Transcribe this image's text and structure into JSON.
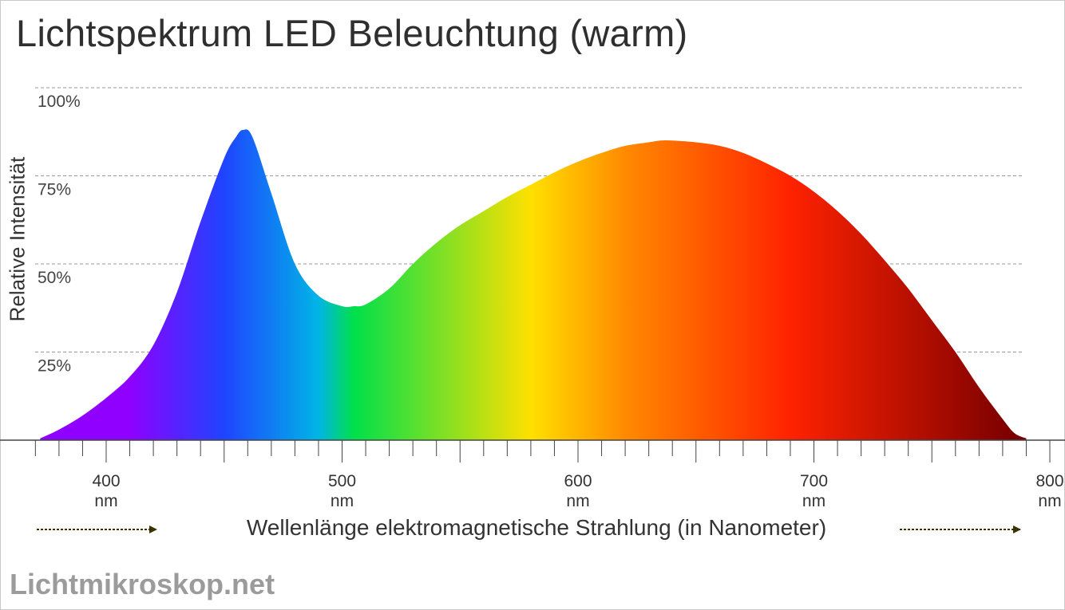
{
  "page": {
    "title": "Lichtspektrum LED Beleuchtung (warm)",
    "brand": "Lichtmikroskop.net"
  },
  "chart_data": {
    "type": "area",
    "title": "Lichtspektrum LED Beleuchtung (warm)",
    "xlabel": "Wellenlänge elektromagnetische Strahlung (in Nanometer)",
    "ylabel": "Relative Intensität",
    "xlim": [
      370,
      810
    ],
    "ylim": [
      0,
      100
    ],
    "grid": true,
    "x_ticks": [
      {
        "value": 400,
        "label": "400",
        "unit": "nm"
      },
      {
        "value": 500,
        "label": "500",
        "unit": "nm"
      },
      {
        "value": 600,
        "label": "600",
        "unit": "nm"
      },
      {
        "value": 700,
        "label": "700",
        "unit": "nm"
      },
      {
        "value": 800,
        "label": "800",
        "unit": "nm"
      }
    ],
    "y_ticks": [
      {
        "value": 25,
        "label": "25%"
      },
      {
        "value": 50,
        "label": "50%"
      },
      {
        "value": 75,
        "label": "75%"
      },
      {
        "value": 100,
        "label": "100%"
      }
    ],
    "x": [
      372,
      380,
      390,
      400,
      410,
      420,
      430,
      440,
      450,
      455,
      458,
      462,
      470,
      480,
      490,
      500,
      505,
      510,
      520,
      530,
      540,
      550,
      560,
      570,
      580,
      590,
      600,
      610,
      620,
      630,
      635,
      640,
      650,
      660,
      670,
      680,
      690,
      700,
      710,
      720,
      730,
      740,
      750,
      760,
      770,
      780,
      785,
      790
    ],
    "values": [
      0.5,
      3,
      7,
      12,
      18,
      27,
      42,
      62,
      80,
      86,
      88,
      86,
      70,
      50,
      41,
      38,
      38,
      38.5,
      43,
      50,
      56,
      61,
      65,
      69,
      72.5,
      76,
      79,
      81.5,
      83.5,
      84.5,
      85,
      85,
      84.5,
      83.5,
      81.5,
      78.5,
      75,
      70.5,
      65,
      58.5,
      51,
      43,
      34,
      25,
      15,
      6,
      2,
      0.5
    ],
    "colors": {
      "violet": "#8f00ff",
      "blue": "#1f44ff",
      "cyan": "#00b5e6",
      "green": "#00e04a",
      "yellow": "#ffe000",
      "orange": "#ff8a00",
      "red": "#ff2200",
      "dark_red": "#7a0000",
      "grid": "#999999",
      "axis": "#444444",
      "arrow": "#3c3200"
    }
  }
}
